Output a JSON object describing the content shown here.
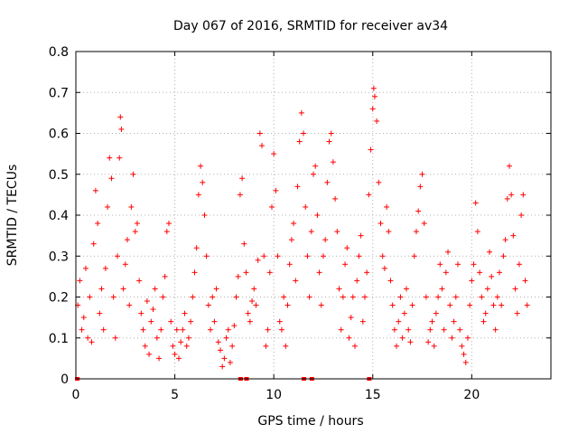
{
  "chart_data": {
    "type": "scatter",
    "title": "Day 067 of 2016, SRMTID for receiver av34",
    "xlabel": "GPS time / hours",
    "ylabel": "SRMTID / TECUs",
    "xlim": [
      0,
      24
    ],
    "ylim": [
      0,
      0.8
    ],
    "x_ticks": [
      0,
      5,
      10,
      15,
      20
    ],
    "y_ticks": [
      0,
      0.1,
      0.2,
      0.3,
      0.4,
      0.5,
      0.6,
      0.7,
      0.8
    ],
    "x_tick_labels": [
      "0",
      "5",
      "10",
      "15",
      "20"
    ],
    "y_tick_labels": [
      "0",
      "0.1",
      "0.2",
      "0.3",
      "0.4",
      "0.5",
      "0.6",
      "0.7",
      "0.8"
    ],
    "grid": true,
    "marker": "plus",
    "color": "#ff0000",
    "series": [
      {
        "name": "SRMTID",
        "points": [
          [
            0.1,
            0.18
          ],
          [
            0.2,
            0.24
          ],
          [
            0.3,
            0.12
          ],
          [
            0.4,
            0.15
          ],
          [
            0.5,
            0.27
          ],
          [
            0.6,
            0.1
          ],
          [
            0.7,
            0.2
          ],
          [
            0.8,
            0.09
          ],
          [
            0.9,
            0.33
          ],
          [
            1.0,
            0.46
          ],
          [
            1.1,
            0.38
          ],
          [
            1.2,
            0.16
          ],
          [
            1.3,
            0.22
          ],
          [
            1.4,
            0.12
          ],
          [
            1.5,
            0.27
          ],
          [
            1.6,
            0.42
          ],
          [
            1.7,
            0.54
          ],
          [
            1.8,
            0.49
          ],
          [
            1.9,
            0.2
          ],
          [
            2.0,
            0.1
          ],
          [
            2.1,
            0.3
          ],
          [
            2.2,
            0.54
          ],
          [
            2.25,
            0.64
          ],
          [
            2.3,
            0.61
          ],
          [
            2.4,
            0.22
          ],
          [
            2.5,
            0.28
          ],
          [
            2.6,
            0.34
          ],
          [
            2.7,
            0.18
          ],
          [
            2.8,
            0.42
          ],
          [
            2.9,
            0.5
          ],
          [
            3.0,
            0.36
          ],
          [
            3.1,
            0.38
          ],
          [
            3.2,
            0.24
          ],
          [
            3.3,
            0.16
          ],
          [
            3.4,
            0.12
          ],
          [
            3.5,
            0.08
          ],
          [
            3.6,
            0.19
          ],
          [
            3.7,
            0.06
          ],
          [
            3.8,
            0.14
          ],
          [
            3.9,
            0.17
          ],
          [
            4.0,
            0.22
          ],
          [
            4.1,
            0.1
          ],
          [
            4.2,
            0.05
          ],
          [
            4.3,
            0.12
          ],
          [
            4.4,
            0.2
          ],
          [
            4.5,
            0.25
          ],
          [
            4.6,
            0.36
          ],
          [
            4.7,
            0.38
          ],
          [
            4.8,
            0.14
          ],
          [
            4.9,
            0.08
          ],
          [
            5.0,
            0.06
          ],
          [
            5.1,
            0.12
          ],
          [
            5.2,
            0.05
          ],
          [
            5.3,
            0.09
          ],
          [
            5.4,
            0.12
          ],
          [
            5.5,
            0.16
          ],
          [
            5.6,
            0.08
          ],
          [
            5.7,
            0.1
          ],
          [
            5.8,
            0.14
          ],
          [
            5.9,
            0.2
          ],
          [
            6.0,
            0.26
          ],
          [
            6.1,
            0.32
          ],
          [
            6.2,
            0.45
          ],
          [
            6.3,
            0.52
          ],
          [
            6.4,
            0.48
          ],
          [
            6.5,
            0.4
          ],
          [
            6.6,
            0.3
          ],
          [
            6.7,
            0.18
          ],
          [
            6.8,
            0.12
          ],
          [
            6.9,
            0.2
          ],
          [
            7.0,
            0.14
          ],
          [
            7.1,
            0.22
          ],
          [
            7.2,
            0.09
          ],
          [
            7.3,
            0.07
          ],
          [
            7.4,
            0.03
          ],
          [
            7.5,
            0.05
          ],
          [
            7.6,
            0.1
          ],
          [
            7.7,
            0.12
          ],
          [
            7.8,
            0.04
          ],
          [
            7.9,
            0.08
          ],
          [
            8.0,
            0.13
          ],
          [
            8.1,
            0.2
          ],
          [
            8.2,
            0.25
          ],
          [
            8.3,
            0.45
          ],
          [
            8.4,
            0.49
          ],
          [
            8.5,
            0.33
          ],
          [
            8.6,
            0.26
          ],
          [
            8.7,
            0.16
          ],
          [
            8.8,
            0.14
          ],
          [
            8.9,
            0.19
          ],
          [
            9.0,
            0.22
          ],
          [
            9.1,
            0.18
          ],
          [
            9.2,
            0.29
          ],
          [
            9.3,
            0.6
          ],
          [
            9.4,
            0.57
          ],
          [
            9.5,
            0.3
          ],
          [
            9.6,
            0.08
          ],
          [
            9.7,
            0.12
          ],
          [
            9.8,
            0.26
          ],
          [
            9.9,
            0.42
          ],
          [
            10.0,
            0.55
          ],
          [
            10.1,
            0.46
          ],
          [
            10.2,
            0.3
          ],
          [
            10.3,
            0.14
          ],
          [
            10.4,
            0.12
          ],
          [
            10.5,
            0.2
          ],
          [
            10.6,
            0.08
          ],
          [
            10.7,
            0.18
          ],
          [
            10.8,
            0.28
          ],
          [
            10.9,
            0.34
          ],
          [
            11.0,
            0.38
          ],
          [
            11.1,
            0.24
          ],
          [
            11.2,
            0.47
          ],
          [
            11.3,
            0.58
          ],
          [
            11.4,
            0.65
          ],
          [
            11.5,
            0.6
          ],
          [
            11.6,
            0.42
          ],
          [
            11.7,
            0.3
          ],
          [
            11.8,
            0.2
          ],
          [
            11.9,
            0.36
          ],
          [
            12.0,
            0.5
          ],
          [
            12.1,
            0.52
          ],
          [
            12.2,
            0.4
          ],
          [
            12.3,
            0.26
          ],
          [
            12.4,
            0.18
          ],
          [
            12.5,
            0.3
          ],
          [
            12.6,
            0.34
          ],
          [
            12.7,
            0.48
          ],
          [
            12.8,
            0.58
          ],
          [
            12.9,
            0.6
          ],
          [
            13.0,
            0.53
          ],
          [
            13.1,
            0.44
          ],
          [
            13.2,
            0.36
          ],
          [
            13.3,
            0.22
          ],
          [
            13.4,
            0.12
          ],
          [
            13.5,
            0.2
          ],
          [
            13.6,
            0.28
          ],
          [
            13.7,
            0.32
          ],
          [
            13.8,
            0.1
          ],
          [
            13.9,
            0.15
          ],
          [
            14.0,
            0.2
          ],
          [
            14.1,
            0.08
          ],
          [
            14.2,
            0.24
          ],
          [
            14.3,
            0.3
          ],
          [
            14.4,
            0.35
          ],
          [
            14.5,
            0.14
          ],
          [
            14.6,
            0.2
          ],
          [
            14.7,
            0.26
          ],
          [
            14.8,
            0.45
          ],
          [
            14.9,
            0.56
          ],
          [
            15.0,
            0.66
          ],
          [
            15.05,
            0.71
          ],
          [
            15.1,
            0.69
          ],
          [
            15.2,
            0.63
          ],
          [
            15.3,
            0.48
          ],
          [
            15.4,
            0.38
          ],
          [
            15.5,
            0.3
          ],
          [
            15.6,
            0.27
          ],
          [
            15.7,
            0.42
          ],
          [
            15.8,
            0.36
          ],
          [
            15.9,
            0.24
          ],
          [
            16.0,
            0.18
          ],
          [
            16.1,
            0.12
          ],
          [
            16.2,
            0.08
          ],
          [
            16.3,
            0.14
          ],
          [
            16.4,
            0.2
          ],
          [
            16.5,
            0.1
          ],
          [
            16.6,
            0.16
          ],
          [
            16.7,
            0.22
          ],
          [
            16.8,
            0.12
          ],
          [
            16.9,
            0.09
          ],
          [
            17.0,
            0.18
          ],
          [
            17.1,
            0.3
          ],
          [
            17.2,
            0.36
          ],
          [
            17.3,
            0.41
          ],
          [
            17.4,
            0.47
          ],
          [
            17.5,
            0.5
          ],
          [
            17.6,
            0.38
          ],
          [
            17.7,
            0.2
          ],
          [
            17.8,
            0.09
          ],
          [
            17.9,
            0.12
          ],
          [
            18.0,
            0.14
          ],
          [
            18.1,
            0.08
          ],
          [
            18.2,
            0.16
          ],
          [
            18.3,
            0.2
          ],
          [
            18.4,
            0.28
          ],
          [
            18.5,
            0.22
          ],
          [
            18.6,
            0.12
          ],
          [
            18.7,
            0.26
          ],
          [
            18.8,
            0.31
          ],
          [
            18.9,
            0.18
          ],
          [
            19.0,
            0.1
          ],
          [
            19.1,
            0.14
          ],
          [
            19.2,
            0.2
          ],
          [
            19.3,
            0.28
          ],
          [
            19.4,
            0.12
          ],
          [
            19.5,
            0.08
          ],
          [
            19.6,
            0.06
          ],
          [
            19.7,
            0.04
          ],
          [
            19.8,
            0.1
          ],
          [
            19.9,
            0.18
          ],
          [
            20.0,
            0.24
          ],
          [
            20.1,
            0.28
          ],
          [
            20.2,
            0.43
          ],
          [
            20.3,
            0.36
          ],
          [
            20.4,
            0.26
          ],
          [
            20.5,
            0.2
          ],
          [
            20.6,
            0.14
          ],
          [
            20.7,
            0.16
          ],
          [
            20.8,
            0.22
          ],
          [
            20.9,
            0.31
          ],
          [
            21.0,
            0.25
          ],
          [
            21.1,
            0.18
          ],
          [
            21.2,
            0.12
          ],
          [
            21.3,
            0.2
          ],
          [
            21.4,
            0.26
          ],
          [
            21.5,
            0.18
          ],
          [
            21.6,
            0.3
          ],
          [
            21.7,
            0.34
          ],
          [
            21.8,
            0.44
          ],
          [
            21.9,
            0.52
          ],
          [
            22.0,
            0.45
          ],
          [
            22.1,
            0.35
          ],
          [
            22.2,
            0.22
          ],
          [
            22.3,
            0.16
          ],
          [
            22.4,
            0.28
          ],
          [
            22.5,
            0.4
          ],
          [
            22.6,
            0.45
          ],
          [
            22.7,
            0.24
          ],
          [
            22.8,
            0.18
          ]
        ]
      }
    ],
    "zero_points": [
      0.05,
      8.3,
      8.6,
      11.5,
      11.9,
      14.8
    ]
  }
}
